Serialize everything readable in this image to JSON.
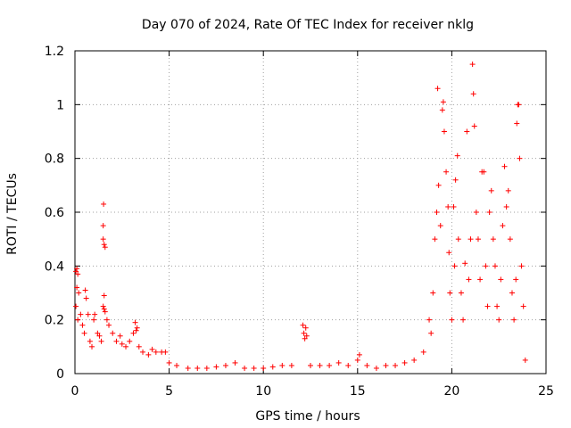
{
  "chart_data": {
    "type": "scatter",
    "title": "Day 070 of 2024, Rate Of TEC Index for receiver nklg",
    "xlabel": "GPS time / hours",
    "ylabel": "ROTI / TECUs",
    "xlim": [
      0,
      25
    ],
    "ylim": [
      0,
      1.2
    ],
    "x_ticks": [
      "0",
      "5",
      "10",
      "15",
      "20",
      "25"
    ],
    "y_ticks": [
      "0",
      "0.2",
      "0.4",
      "0.6",
      "0.8",
      "1",
      "1.2"
    ],
    "x_tick_values": [
      0,
      5,
      10,
      15,
      20,
      25
    ],
    "y_tick_values": [
      0,
      0.2,
      0.4,
      0.6,
      0.8,
      1.0,
      1.2
    ],
    "grid": true,
    "legend": "none",
    "marker": "+",
    "color": "#ff0000",
    "series": [
      {
        "points": [
          [
            0.05,
            0.38
          ],
          [
            0.1,
            0.39
          ],
          [
            0.15,
            0.37
          ],
          [
            0.1,
            0.32
          ],
          [
            0.2,
            0.3
          ],
          [
            0.05,
            0.25
          ],
          [
            0.3,
            0.22
          ],
          [
            0.15,
            0.2
          ],
          [
            0.4,
            0.18
          ],
          [
            0.5,
            0.15
          ],
          [
            0.6,
            0.28
          ],
          [
            0.55,
            0.31
          ],
          [
            0.7,
            0.22
          ],
          [
            0.8,
            0.12
          ],
          [
            0.9,
            0.1
          ],
          [
            1.0,
            0.2
          ],
          [
            1.05,
            0.22
          ],
          [
            1.2,
            0.15
          ],
          [
            1.3,
            0.14
          ],
          [
            1.4,
            0.12
          ],
          [
            1.5,
            0.25
          ],
          [
            1.55,
            0.24
          ],
          [
            1.6,
            0.23
          ],
          [
            1.5,
            0.5
          ],
          [
            1.55,
            0.48
          ],
          [
            1.6,
            0.47
          ],
          [
            1.5,
            0.55
          ],
          [
            1.52,
            0.63
          ],
          [
            1.55,
            0.29
          ],
          [
            1.7,
            0.2
          ],
          [
            1.8,
            0.18
          ],
          [
            2.0,
            0.15
          ],
          [
            2.2,
            0.12
          ],
          [
            2.4,
            0.14
          ],
          [
            2.5,
            0.11
          ],
          [
            2.7,
            0.1
          ],
          [
            2.9,
            0.12
          ],
          [
            3.1,
            0.15
          ],
          [
            3.2,
            0.19
          ],
          [
            3.3,
            0.17
          ],
          [
            3.25,
            0.16
          ],
          [
            3.4,
            0.1
          ],
          [
            3.6,
            0.08
          ],
          [
            3.9,
            0.07
          ],
          [
            4.1,
            0.09
          ],
          [
            4.3,
            0.08
          ],
          [
            4.6,
            0.08
          ],
          [
            4.8,
            0.08
          ],
          [
            5.0,
            0.04
          ],
          [
            5.4,
            0.03
          ],
          [
            6.0,
            0.02
          ],
          [
            6.5,
            0.02
          ],
          [
            7.0,
            0.02
          ],
          [
            7.5,
            0.025
          ],
          [
            8.0,
            0.03
          ],
          [
            8.5,
            0.04
          ],
          [
            9.0,
            0.02
          ],
          [
            9.5,
            0.02
          ],
          [
            10.0,
            0.02
          ],
          [
            10.5,
            0.025
          ],
          [
            11.0,
            0.03
          ],
          [
            11.5,
            0.03
          ],
          [
            12.1,
            0.18
          ],
          [
            12.15,
            0.15
          ],
          [
            12.2,
            0.13
          ],
          [
            12.25,
            0.17
          ],
          [
            12.3,
            0.14
          ],
          [
            12.5,
            0.03
          ],
          [
            13.0,
            0.03
          ],
          [
            13.5,
            0.03
          ],
          [
            14.0,
            0.04
          ],
          [
            14.5,
            0.03
          ],
          [
            15.0,
            0.05
          ],
          [
            15.1,
            0.07
          ],
          [
            15.5,
            0.03
          ],
          [
            16.0,
            0.02
          ],
          [
            16.5,
            0.03
          ],
          [
            17.0,
            0.03
          ],
          [
            17.5,
            0.04
          ],
          [
            18.0,
            0.05
          ],
          [
            18.5,
            0.08
          ],
          [
            18.8,
            0.2
          ],
          [
            18.9,
            0.15
          ],
          [
            19.0,
            0.3
          ],
          [
            19.1,
            0.5
          ],
          [
            19.2,
            0.6
          ],
          [
            19.25,
            1.06
          ],
          [
            19.3,
            0.7
          ],
          [
            19.4,
            0.55
          ],
          [
            19.5,
            0.98
          ],
          [
            19.55,
            1.01
          ],
          [
            19.6,
            0.9
          ],
          [
            19.7,
            0.75
          ],
          [
            19.8,
            0.62
          ],
          [
            19.85,
            0.45
          ],
          [
            19.9,
            0.3
          ],
          [
            20.0,
            0.2
          ],
          [
            20.1,
            0.62
          ],
          [
            20.15,
            0.4
          ],
          [
            20.2,
            0.72
          ],
          [
            20.3,
            0.81
          ],
          [
            20.35,
            0.5
          ],
          [
            20.5,
            0.3
          ],
          [
            20.6,
            0.2
          ],
          [
            20.7,
            0.41
          ],
          [
            20.8,
            0.9
          ],
          [
            20.9,
            0.35
          ],
          [
            21.0,
            0.5
          ],
          [
            21.1,
            1.15
          ],
          [
            21.15,
            1.04
          ],
          [
            21.2,
            0.92
          ],
          [
            21.3,
            0.6
          ],
          [
            21.4,
            0.5
          ],
          [
            21.5,
            0.35
          ],
          [
            21.6,
            0.75
          ],
          [
            21.7,
            0.75
          ],
          [
            21.8,
            0.4
          ],
          [
            21.9,
            0.25
          ],
          [
            22.0,
            0.6
          ],
          [
            22.1,
            0.68
          ],
          [
            22.2,
            0.5
          ],
          [
            22.3,
            0.4
          ],
          [
            22.4,
            0.25
          ],
          [
            22.5,
            0.2
          ],
          [
            22.6,
            0.35
          ],
          [
            22.7,
            0.55
          ],
          [
            22.8,
            0.77
          ],
          [
            22.9,
            0.62
          ],
          [
            23.0,
            0.68
          ],
          [
            23.1,
            0.5
          ],
          [
            23.2,
            0.3
          ],
          [
            23.3,
            0.2
          ],
          [
            23.4,
            0.35
          ],
          [
            23.45,
            0.93
          ],
          [
            23.5,
            1.0
          ],
          [
            23.55,
            1.0
          ],
          [
            23.6,
            0.8
          ],
          [
            23.7,
            0.4
          ],
          [
            23.8,
            0.25
          ],
          [
            23.9,
            0.05
          ]
        ]
      }
    ]
  }
}
